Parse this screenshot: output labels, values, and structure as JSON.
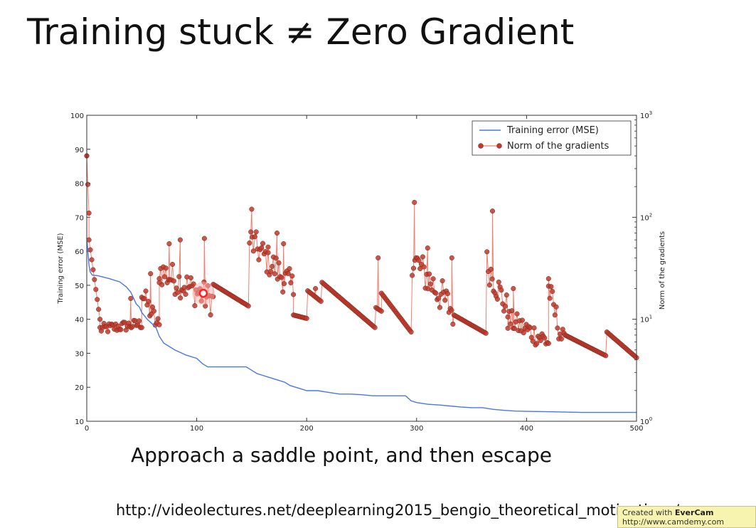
{
  "slide": {
    "title": "Training stuck ≠ Zero Gradient",
    "caption": "Approach a saddle point, and then escape",
    "source_url": "http://videolectures.net/deeplearning2015_bengio_theoretical_motivations/",
    "watermark_prefix": "Created with",
    "watermark_brand": "EverCam",
    "watermark_sub": "http://www.camdemy.com"
  },
  "chart_data": {
    "type": "line",
    "title": "",
    "xlabel": "",
    "ylabel": "Training error (MSE)",
    "y2label": "Norm of the gradients",
    "xlim": [
      0,
      500
    ],
    "ylim": [
      10,
      100
    ],
    "y2lim": [
      1,
      1000
    ],
    "y2scale": "log",
    "grid": false,
    "legend_position": "top-right",
    "x_ticks": [
      "0",
      "100",
      "200",
      "300",
      "400",
      "500"
    ],
    "y_ticks": [
      "10",
      "20",
      "30",
      "40",
      "50",
      "60",
      "70",
      "80",
      "90",
      "100"
    ],
    "y2_ticks": [
      {
        "base": "10",
        "exp": "0"
      },
      {
        "base": "10",
        "exp": "1"
      },
      {
        "base": "10",
        "exp": "2"
      },
      {
        "base": "10",
        "exp": "3"
      }
    ],
    "colors": {
      "training_error": "#4a77e6",
      "gradient_norm": "#c0392b",
      "gradient_line": "#f08070",
      "highlight": "#ff2020"
    },
    "series": [
      {
        "name": "Training error (MSE)",
        "axis": "left",
        "x": [
          0,
          1,
          2,
          3,
          5,
          10,
          20,
          30,
          36,
          40,
          45,
          48,
          50,
          55,
          60,
          63,
          66,
          70,
          75,
          80,
          90,
          100,
          105,
          110,
          115,
          120,
          130,
          140,
          145,
          150,
          155,
          160,
          165,
          170,
          175,
          180,
          185,
          190,
          195,
          200,
          210,
          220,
          230,
          240,
          250,
          260,
          270,
          280,
          290,
          295,
          300,
          310,
          320,
          330,
          340,
          350,
          360,
          370,
          380,
          390,
          400,
          420,
          450,
          500
        ],
        "y": [
          64,
          60,
          56,
          54,
          53,
          52.8,
          52,
          51,
          49.5,
          48,
          44.5,
          43.5,
          42,
          40,
          38.5,
          37.5,
          35,
          33,
          32,
          31,
          29.5,
          28.5,
          27,
          26,
          26,
          26,
          26,
          26,
          26,
          25,
          24,
          23.5,
          23,
          22.5,
          22,
          21.5,
          20.5,
          20,
          19.5,
          19,
          19,
          18.5,
          18,
          18,
          17.8,
          17.5,
          17.5,
          17.5,
          17.5,
          16,
          15.5,
          15,
          14.8,
          14.5,
          14.2,
          14,
          14,
          13.5,
          13.2,
          13,
          12.9,
          12.8,
          12.6,
          12.6
        ]
      },
      {
        "name": "Norm of the gradients",
        "axis": "right",
        "segments": [
          {
            "x0": 0,
            "x1": 2,
            "v0": 400,
            "v1": 110
          },
          {
            "x0": 2,
            "x1": 12,
            "v0": 60,
            "v1": 10
          },
          {
            "x0": 12,
            "x1": 50,
            "v0": 8,
            "v1": 9,
            "noise": 0.12
          },
          {
            "x0": 50,
            "x1": 66,
            "v0": 18,
            "v1": 8,
            "noise": 0.25
          },
          {
            "x0": 66,
            "x1": 115,
            "v0": 30,
            "v1": 15,
            "noise": 0.35
          },
          {
            "x0": 115,
            "x1": 147,
            "v0": 22,
            "v1": 13.5
          },
          {
            "x0": 148,
            "x1": 188,
            "v0": 60,
            "v1": 20,
            "noise": 0.35
          },
          {
            "x0": 188,
            "x1": 200,
            "v0": 11,
            "v1": 10.2
          },
          {
            "x0": 201,
            "x1": 213,
            "v0": 19,
            "v1": 15
          },
          {
            "x0": 214,
            "x1": 262,
            "v0": 23,
            "v1": 8.3
          },
          {
            "x0": 263,
            "x1": 268,
            "v0": 13,
            "v1": 12
          },
          {
            "x0": 268,
            "x1": 295,
            "v0": 18,
            "v1": 7.5
          },
          {
            "x0": 296,
            "x1": 333,
            "v0": 40,
            "v1": 12,
            "noise": 0.4
          },
          {
            "x0": 334,
            "x1": 363,
            "v0": 11,
            "v1": 7.3
          },
          {
            "x0": 364,
            "x1": 383,
            "v0": 35,
            "v1": 12,
            "noise": 0.35
          },
          {
            "x0": 383,
            "x1": 420,
            "v0": 10,
            "v1": 6,
            "noise": 0.25
          },
          {
            "x0": 420,
            "x1": 434,
            "v0": 20,
            "v1": 5.5,
            "noise": 0.3
          },
          {
            "x0": 435,
            "x1": 472,
            "v0": 7,
            "v1": 4.4
          },
          {
            "x0": 473,
            "x1": 500,
            "v0": 7.5,
            "v1": 4.2
          }
        ],
        "spikes": [
          {
            "x": 0,
            "v": 400
          },
          {
            "x": 40,
            "v": 16
          },
          {
            "x": 58,
            "v": 28
          },
          {
            "x": 66,
            "v": 25
          },
          {
            "x": 75,
            "v": 55
          },
          {
            "x": 85,
            "v": 60
          },
          {
            "x": 107,
            "v": 62
          },
          {
            "x": 150,
            "v": 120
          },
          {
            "x": 165,
            "v": 45
          },
          {
            "x": 173,
            "v": 70
          },
          {
            "x": 179,
            "v": 55
          },
          {
            "x": 208,
            "v": 20
          },
          {
            "x": 265,
            "v": 40
          },
          {
            "x": 298,
            "v": 140
          },
          {
            "x": 310,
            "v": 50
          },
          {
            "x": 332,
            "v": 40
          },
          {
            "x": 369,
            "v": 115
          },
          {
            "x": 388,
            "v": 20
          },
          {
            "x": 420,
            "v": 25
          }
        ],
        "highlight": {
          "x": 106,
          "v": 18
        }
      }
    ]
  }
}
